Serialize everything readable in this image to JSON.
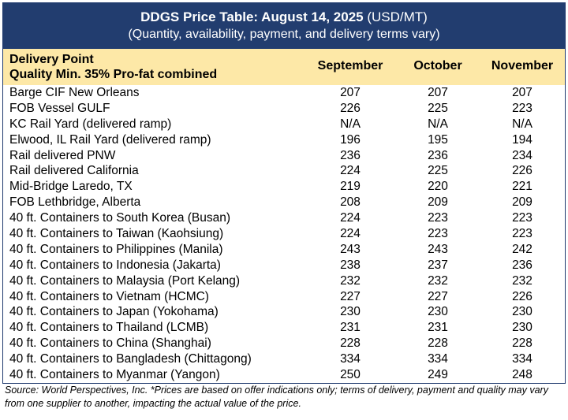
{
  "title": {
    "bold": "DDGS Price Table: August 14, 2025",
    "unit": " (USD/MT)",
    "subtitle": "(Quantity, availability, payment, and delivery terms vary)"
  },
  "header": {
    "label_line1": "Delivery Point",
    "label_line2": "Quality Min. 35% Pro-fat combined",
    "months": [
      "September",
      "October",
      "November"
    ]
  },
  "rows": [
    {
      "name": "Barge CIF New Orleans",
      "sep": "207",
      "oct": "207",
      "nov": "207"
    },
    {
      "name": "FOB Vessel GULF",
      "sep": "226",
      "oct": "225",
      "nov": "223"
    },
    {
      "name": "KC Rail Yard (delivered ramp)",
      "sep": "N/A",
      "oct": "N/A",
      "nov": "N/A"
    },
    {
      "name": "Elwood, IL Rail Yard (delivered ramp)",
      "sep": "196",
      "oct": "195",
      "nov": "194"
    },
    {
      "name": "Rail delivered PNW",
      "sep": "236",
      "oct": "236",
      "nov": "234"
    },
    {
      "name": "Rail delivered California",
      "sep": "224",
      "oct": "225",
      "nov": "226"
    },
    {
      "name": "Mid-Bridge Laredo, TX",
      "sep": "219",
      "oct": "220",
      "nov": "221"
    },
    {
      "name": "FOB Lethbridge, Alberta",
      "sep": "208",
      "oct": "209",
      "nov": "209"
    },
    {
      "name": "40 ft. Containers to South Korea (Busan)",
      "sep": "224",
      "oct": "223",
      "nov": "223"
    },
    {
      "name": "40 ft. Containers to Taiwan (Kaohsiung)",
      "sep": "224",
      "oct": "223",
      "nov": "223"
    },
    {
      "name": "40 ft. Containers to Philippines (Manila)",
      "sep": "243",
      "oct": "243",
      "nov": "242"
    },
    {
      "name": "40 ft. Containers to Indonesia (Jakarta)",
      "sep": "238",
      "oct": "237",
      "nov": "236"
    },
    {
      "name": "40 ft. Containers to Malaysia (Port Kelang)",
      "sep": "232",
      "oct": "232",
      "nov": "232"
    },
    {
      "name": "40 ft. Containers to Vietnam (HCMC)",
      "sep": "227",
      "oct": "227",
      "nov": "226"
    },
    {
      "name": "40 ft. Containers to Japan (Yokohama)",
      "sep": "230",
      "oct": "230",
      "nov": "230"
    },
    {
      "name": "40 ft. Containers to Thailand (LCMB)",
      "sep": "231",
      "oct": "231",
      "nov": "230"
    },
    {
      "name": "40 ft. Containers to China (Shanghai)",
      "sep": "228",
      "oct": "228",
      "nov": "228"
    },
    {
      "name": "40 ft. Containers to Bangladesh (Chittagong)",
      "sep": "334",
      "oct": "334",
      "nov": "334"
    },
    {
      "name": "40 ft. Containers to Myanmar (Yangon)",
      "sep": "250",
      "oct": "249",
      "nov": "248"
    }
  ],
  "source": "Source: World Perspectives, Inc. *Prices are based on offer indications only; terms of delivery, payment and quality may vary from one supplier to another, impacting the actual value of the price.",
  "colors": {
    "title_bg": "#223d6f",
    "header_bg": "#fde8a7"
  }
}
